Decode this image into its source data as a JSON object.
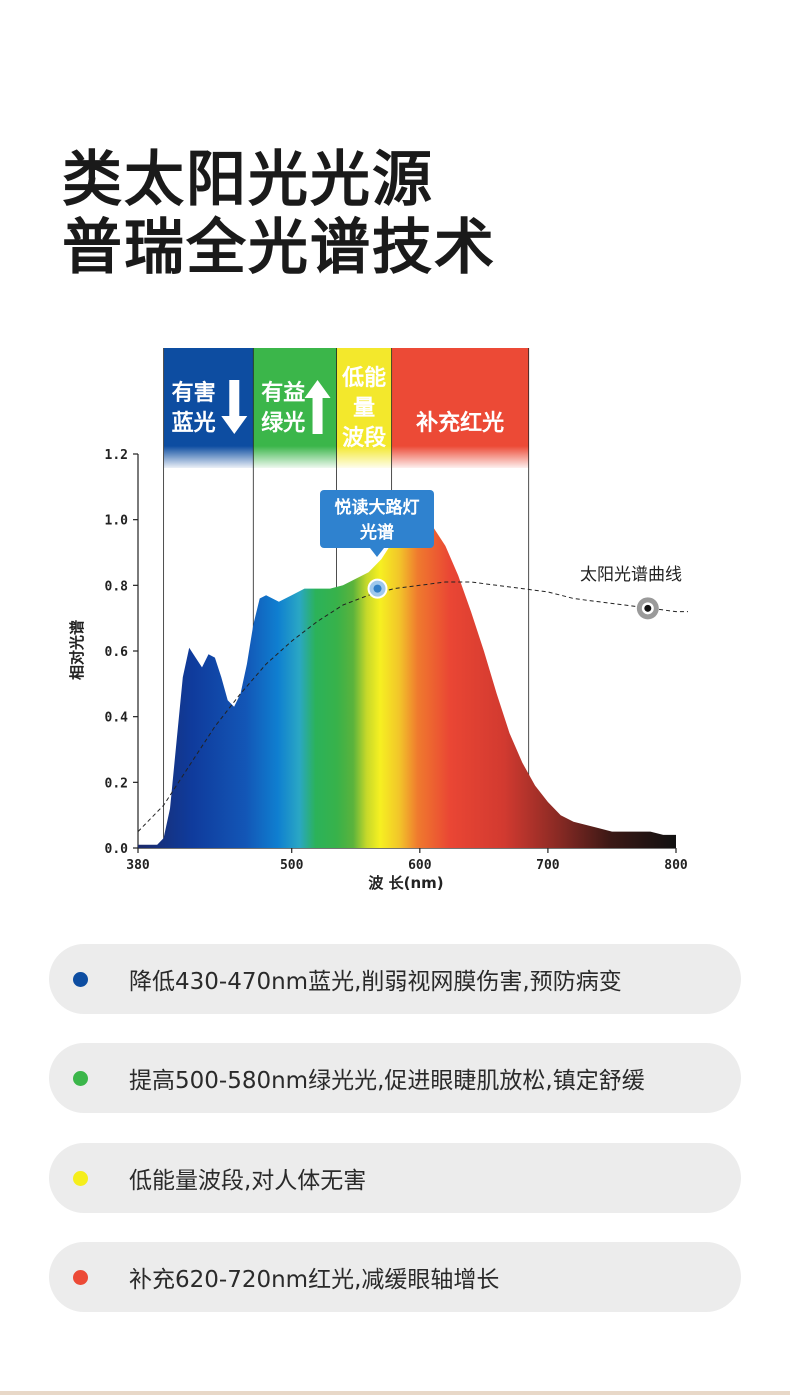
{
  "title": {
    "line1": "类太阳光光源",
    "line2": "普瑞全光谱技术"
  },
  "bands": [
    {
      "lines": [
        "有害",
        "蓝光"
      ],
      "arrow": "down",
      "color": "#0d4da1",
      "x_from": 400,
      "x_to": 470,
      "icon": "arrow-down-icon"
    },
    {
      "lines": [
        "有益",
        "绿光"
      ],
      "arrow": "up",
      "color": "#3bb64a",
      "x_from": 470,
      "x_to": 535,
      "icon": "arrow-up-icon"
    },
    {
      "lines": [
        "低能",
        "量",
        "波段"
      ],
      "arrow": null,
      "color": "#f3e82c",
      "x_from": 535,
      "x_to": 578,
      "icon": null
    },
    {
      "lines": [
        "补充红光"
      ],
      "arrow": null,
      "color": "#ec4a36",
      "x_from": 578,
      "x_to": 685,
      "icon": null
    }
  ],
  "chart_data": {
    "type": "area",
    "xlabel": "波 长(nm)",
    "ylabel": "相对光谱",
    "xlim": [
      380,
      800
    ],
    "ylim": [
      0,
      1.2
    ],
    "x_ticks": [
      "380",
      "500",
      "600",
      "700",
      "800"
    ],
    "y_ticks": [
      "0.0",
      "0.2",
      "0.4",
      "0.6",
      "0.8",
      "1.0",
      "1.2"
    ],
    "series": [
      {
        "name": "悦读大路灯光谱",
        "x": [
          380,
          395,
          400,
          405,
          410,
          415,
          420,
          425,
          430,
          435,
          440,
          445,
          450,
          455,
          460,
          465,
          470,
          475,
          480,
          485,
          490,
          500,
          510,
          520,
          530,
          540,
          550,
          560,
          570,
          580,
          590,
          600,
          610,
          620,
          630,
          640,
          650,
          660,
          670,
          680,
          690,
          700,
          710,
          720,
          730,
          740,
          750,
          760,
          770,
          780,
          790,
          800
        ],
        "y": [
          0.01,
          0.01,
          0.03,
          0.12,
          0.32,
          0.52,
          0.61,
          0.58,
          0.55,
          0.59,
          0.58,
          0.52,
          0.45,
          0.43,
          0.47,
          0.56,
          0.68,
          0.76,
          0.77,
          0.76,
          0.75,
          0.77,
          0.79,
          0.79,
          0.79,
          0.8,
          0.82,
          0.84,
          0.88,
          0.94,
          0.99,
          1.0,
          0.98,
          0.92,
          0.83,
          0.72,
          0.6,
          0.47,
          0.35,
          0.26,
          0.19,
          0.14,
          0.1,
          0.08,
          0.07,
          0.06,
          0.05,
          0.05,
          0.05,
          0.05,
          0.04,
          0.04
        ]
      },
      {
        "name": "太阳光谱曲线",
        "x": [
          380,
          400,
          420,
          440,
          460,
          480,
          500,
          520,
          540,
          560,
          580,
          600,
          620,
          640,
          660,
          680,
          700,
          720,
          740,
          760,
          780,
          800
        ],
        "y": [
          0.05,
          0.13,
          0.25,
          0.37,
          0.47,
          0.56,
          0.63,
          0.69,
          0.74,
          0.77,
          0.79,
          0.8,
          0.81,
          0.81,
          0.8,
          0.79,
          0.78,
          0.76,
          0.75,
          0.74,
          0.73,
          0.72
        ]
      }
    ],
    "annotations": {
      "callout": "悦读大路灯光谱",
      "callout_lines": [
        "悦读大路灯",
        "光谱"
      ],
      "callout_point": {
        "x": 567,
        "y": 0.79
      },
      "sun_label": "太阳光谱曲线",
      "sun_point": {
        "x": 778,
        "y": 0.73
      }
    }
  },
  "benefits": [
    {
      "text": "降低430-470nm蓝光,削弱视网膜伤害,预防病变",
      "color": "#0d4da1"
    },
    {
      "text": "提高500-580nm绿光光,促进眼睫肌放松,镇定舒缓",
      "color": "#3bb64a"
    },
    {
      "text": "低能量波段,对人体无害",
      "color": "#f5ee1c"
    },
    {
      "text": "补充620-720nm红光,减缓眼轴增长",
      "color": "#ec4a36"
    }
  ]
}
